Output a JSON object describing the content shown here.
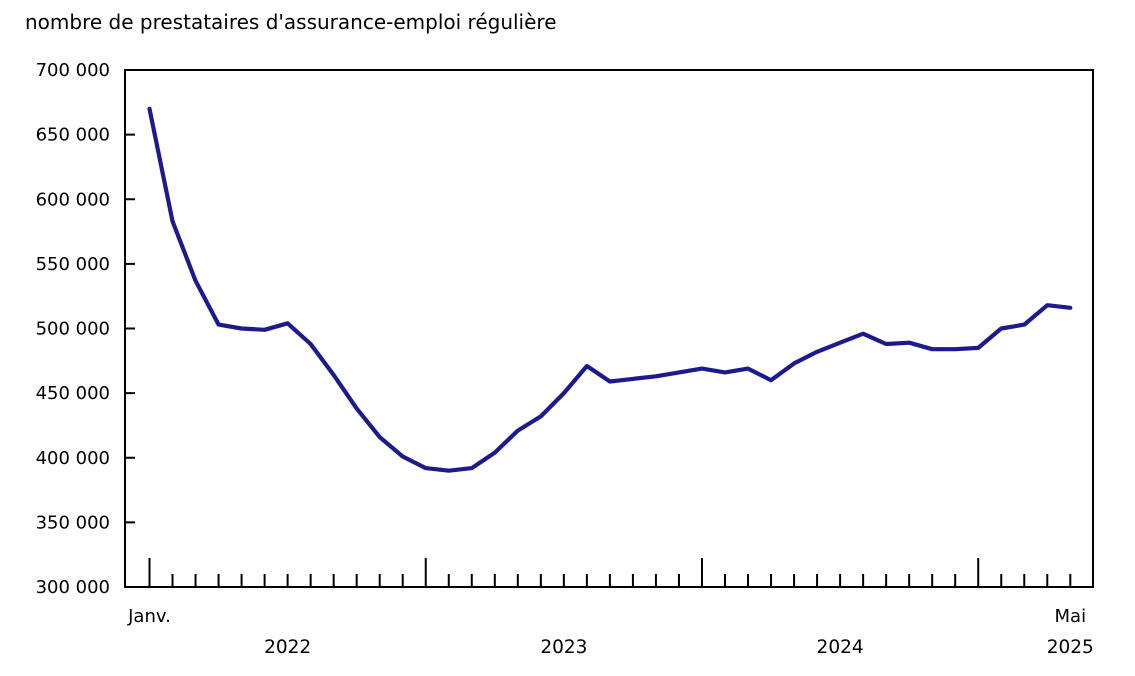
{
  "chart_data": {
    "type": "line",
    "title": "nombre de prestataires d'assurance-emploi régulière",
    "x_start_month": "2022-01",
    "x_end_month": "2025-05",
    "series": [
      {
        "name": "prestataires d'assurance-emploi régulière",
        "values": [
          670000,
          583000,
          537000,
          503000,
          500000,
          499000,
          504000,
          488000,
          464000,
          438000,
          416000,
          401000,
          392000,
          390000,
          392000,
          404000,
          421000,
          432000,
          450000,
          471000,
          459000,
          461000,
          463000,
          466000,
          469000,
          466000,
          469000,
          460000,
          473000,
          482000,
          489000,
          496000,
          488000,
          489000,
          484000,
          484000,
          485000,
          500000,
          503000,
          518000,
          516000
        ]
      }
    ],
    "ylim": [
      300000,
      700000
    ],
    "ytick_step": 50000,
    "ytick_labels": [
      "300 000",
      "350 000",
      "400 000",
      "450 000",
      "500 000",
      "550 000",
      "600 000",
      "650 000",
      "700 000"
    ],
    "xlabels": {
      "first_tick": "Janv.",
      "last_tick": "Mai",
      "years": [
        "2022",
        "2023",
        "2024",
        "2025"
      ]
    },
    "grid": false,
    "legend_position": "none",
    "line_color": "#1b1b8f",
    "axis_color": "#000000"
  }
}
